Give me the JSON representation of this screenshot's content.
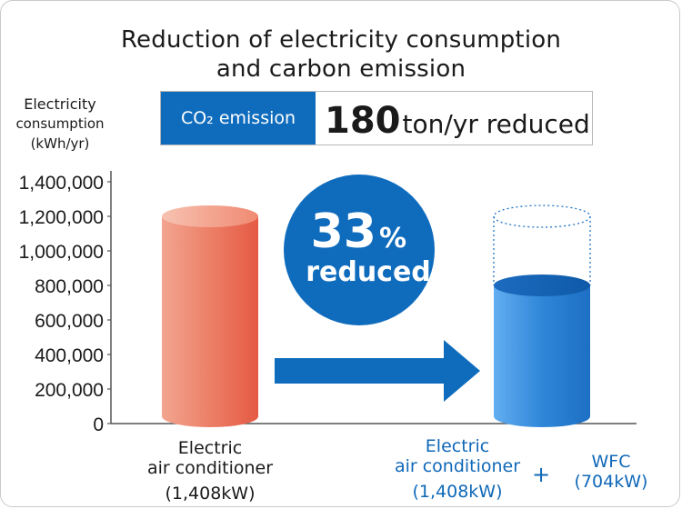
{
  "title": {
    "line1": "Reduction of electricity consumption",
    "line2": "and carbon emission"
  },
  "callout": {
    "co2_label": "CO₂ emission",
    "value": "180",
    "unit": "ton/yr reduced"
  },
  "circle": {
    "percent": "33",
    "percent_sign": "%",
    "text": "reduced"
  },
  "labels": {
    "conventional": [
      "Electric",
      "air conditioner",
      "(1,408kW)"
    ],
    "proposed_ac": [
      "Electric",
      "air conditioner",
      "(1,408kW)"
    ],
    "plus": "+",
    "proposed_wfc": [
      "WFC",
      "(704kW)"
    ]
  },
  "chart_data": {
    "type": "bar",
    "ylabel": [
      "Electricity",
      "consumption",
      "(kWh/yr)"
    ],
    "ylim": [
      0,
      1400000
    ],
    "yticks": [
      0,
      200000,
      400000,
      600000,
      800000,
      1000000,
      1200000,
      1400000
    ],
    "ytick_labels": [
      "0",
      "200,000",
      "400,000",
      "600,000",
      "800,000",
      "1,000,000",
      "1,200,000",
      "1,400,000"
    ],
    "categories": [
      "Electric air conditioner (1,408kW)",
      "Electric air conditioner (1,408kW) + WFC (704kW)"
    ],
    "values": [
      1200000,
      800000
    ],
    "colors": [
      "#e9634e",
      "#1f72c6"
    ],
    "grid": false
  }
}
